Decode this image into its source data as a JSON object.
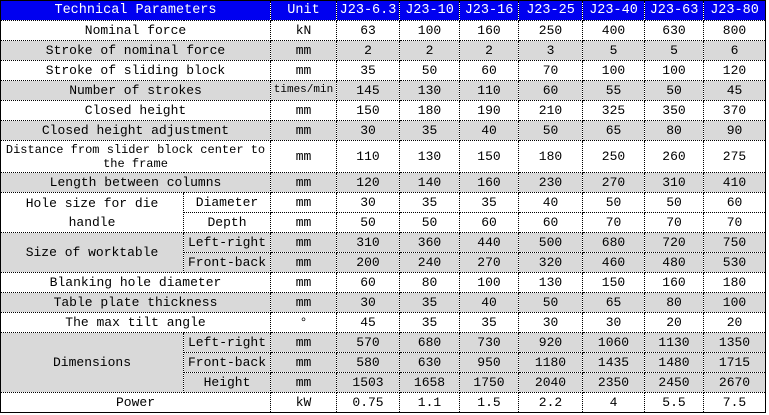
{
  "header": {
    "param_label": "Technical Parameters",
    "unit_label": "Unit",
    "models": [
      "J23-6.3",
      "J23-10",
      "J23-16",
      "J23-25",
      "J23-40",
      "J23-63",
      "J23-80"
    ]
  },
  "colors": {
    "header_bg": "#0000f0",
    "header_text": "#ffffff",
    "shaded_row": "#d9d9d9"
  },
  "rows": [
    {
      "param": "Nominal force",
      "unit": "kN",
      "values": [
        "63",
        "100",
        "160",
        "250",
        "400",
        "630",
        "800"
      ]
    },
    {
      "param": "Stroke of nominal force",
      "unit": "mm",
      "values": [
        "2",
        "2",
        "2",
        "3",
        "5",
        "5",
        "6"
      ]
    },
    {
      "param": "Stroke of sliding block",
      "unit": "mm",
      "values": [
        "35",
        "50",
        "60",
        "70",
        "100",
        "100",
        "120"
      ]
    },
    {
      "param": "Number of strokes",
      "unit": "times/min",
      "values": [
        "145",
        "130",
        "110",
        "60",
        "55",
        "50",
        "45"
      ]
    },
    {
      "param": "Closed height",
      "unit": "mm",
      "values": [
        "150",
        "180",
        "190",
        "210",
        "325",
        "350",
        "370"
      ]
    },
    {
      "param": "Closed height adjustment",
      "unit": "mm",
      "values": [
        "30",
        "35",
        "40",
        "50",
        "65",
        "80",
        "90"
      ]
    },
    {
      "param": "Distance from slider block center to the frame",
      "unit": "mm",
      "values": [
        "110",
        "130",
        "150",
        "180",
        "250",
        "260",
        "275"
      ]
    },
    {
      "param": "Length between columns",
      "unit": "mm",
      "values": [
        "120",
        "140",
        "160",
        "230",
        "270",
        "310",
        "410"
      ]
    },
    {
      "param": "Hole size for die handle",
      "sub": [
        {
          "label": "Diameter",
          "unit": "mm",
          "values": [
            "30",
            "35",
            "35",
            "40",
            "50",
            "50",
            "60"
          ]
        },
        {
          "label": "Depth",
          "unit": "mm",
          "values": [
            "50",
            "50",
            "60",
            "60",
            "70",
            "70",
            "70"
          ]
        }
      ]
    },
    {
      "param": "Size of worktable",
      "sub": [
        {
          "label": "Left-right",
          "unit": "mm",
          "values": [
            "310",
            "360",
            "440",
            "500",
            "680",
            "720",
            "750"
          ]
        },
        {
          "label": "Front-back",
          "unit": "mm",
          "values": [
            "200",
            "240",
            "270",
            "320",
            "460",
            "480",
            "530"
          ]
        }
      ]
    },
    {
      "param": "Blanking hole diameter",
      "unit": "mm",
      "values": [
        "60",
        "80",
        "100",
        "130",
        "150",
        "160",
        "180"
      ]
    },
    {
      "param": "Table plate thickness",
      "unit": "mm",
      "values": [
        "30",
        "35",
        "40",
        "50",
        "65",
        "80",
        "100"
      ]
    },
    {
      "param": "The max tilt angle",
      "unit": "°",
      "values": [
        "45",
        "35",
        "35",
        "30",
        "30",
        "20",
        "20"
      ]
    },
    {
      "param": "Dimensions",
      "sub": [
        {
          "label": "Left-right",
          "unit": "mm",
          "values": [
            "570",
            "680",
            "730",
            "920",
            "1060",
            "1130",
            "1350"
          ]
        },
        {
          "label": "Front-back",
          "unit": "mm",
          "values": [
            "580",
            "630",
            "950",
            "1180",
            "1435",
            "1480",
            "1715"
          ]
        },
        {
          "label": "Height",
          "unit": "mm",
          "values": [
            "1503",
            "1658",
            "1750",
            "2040",
            "2350",
            "2450",
            "2670"
          ]
        }
      ]
    },
    {
      "param": "Power",
      "unit": "kW",
      "values": [
        "0.75",
        "1.1",
        "1.5",
        "2.2",
        "4",
        "5.5",
        "7.5"
      ]
    }
  ]
}
